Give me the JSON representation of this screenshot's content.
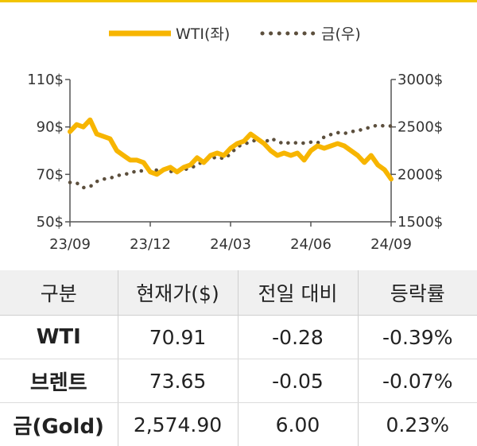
{
  "chart_data": {
    "type": "line",
    "x_ticks": [
      "23/09",
      "23/12",
      "24/03",
      "24/06",
      "24/09"
    ],
    "y_left_ticks": [
      "110$",
      "90$",
      "70$",
      "50$"
    ],
    "y_right_ticks": [
      "3000$",
      "2500$",
      "2000$",
      "1500$"
    ],
    "y_left_range": [
      50,
      110
    ],
    "y_right_range": [
      1500,
      3000
    ],
    "x_range": [
      0,
      12
    ],
    "legend_position": "top-center",
    "grid": false,
    "series": [
      {
        "name": "WTI(좌)",
        "axis": "left",
        "style": "solid",
        "color": "#f7b500",
        "x": [
          0,
          0.25,
          0.5,
          0.75,
          1,
          1.25,
          1.5,
          1.75,
          2,
          2.25,
          2.5,
          2.75,
          3,
          3.25,
          3.5,
          3.75,
          4,
          4.25,
          4.5,
          4.75,
          5,
          5.25,
          5.5,
          5.75,
          6,
          6.25,
          6.5,
          6.75,
          7,
          7.25,
          7.5,
          7.75,
          8,
          8.25,
          8.5,
          8.75,
          9,
          9.25,
          9.5,
          9.75,
          10,
          10.25,
          10.5,
          10.75,
          11,
          11.25,
          11.5,
          11.75,
          12
        ],
        "y": [
          88,
          91,
          90,
          93,
          87,
          86,
          85,
          80,
          78,
          76,
          76,
          75,
          71,
          70,
          72,
          73,
          71,
          73,
          74,
          77,
          75,
          78,
          79,
          78,
          81,
          83,
          84,
          87,
          85,
          83,
          80,
          78,
          79,
          78,
          79,
          76,
          80,
          82,
          81,
          82,
          83,
          82,
          80,
          78,
          75,
          78,
          74,
          72,
          68
        ]
      },
      {
        "name": "금(우)",
        "axis": "right",
        "style": "dotted",
        "color": "#5c4f3d",
        "x": [
          0,
          0.25,
          0.5,
          0.75,
          1,
          1.25,
          1.5,
          1.75,
          2,
          2.25,
          2.5,
          2.75,
          3,
          3.25,
          3.5,
          3.75,
          4,
          4.25,
          4.5,
          4.75,
          5,
          5.25,
          5.5,
          5.75,
          6,
          6.25,
          6.5,
          6.75,
          7,
          7.25,
          7.5,
          7.75,
          8,
          8.25,
          8.5,
          8.75,
          9,
          9.25,
          9.5,
          9.75,
          10,
          10.25,
          10.5,
          10.75,
          11,
          11.25,
          11.5,
          11.75,
          12
        ],
        "y": [
          1915,
          1910,
          1860,
          1870,
          1925,
          1950,
          1960,
          1985,
          2000,
          2010,
          2040,
          2035,
          2050,
          2045,
          2055,
          2030,
          2040,
          2050,
          2065,
          2100,
          2140,
          2165,
          2185,
          2165,
          2215,
          2290,
          2320,
          2340,
          2370,
          2330,
          2380,
          2350,
          2320,
          2340,
          2330,
          2330,
          2340,
          2330,
          2395,
          2420,
          2440,
          2430,
          2450,
          2460,
          2480,
          2500,
          2520,
          2510,
          2510
        ]
      }
    ]
  },
  "table": {
    "headers": [
      "구분",
      "현재가($)",
      "전일 대비",
      "등락률"
    ],
    "rows": [
      {
        "name": "WTI",
        "price": "70.91",
        "change": "-0.28",
        "rate": "-0.39%"
      },
      {
        "name": "브렌트",
        "price": "73.65",
        "change": "-0.05",
        "rate": "-0.07%"
      },
      {
        "name": "금(Gold)",
        "price": "2,574.90",
        "change": "6.00",
        "rate": "0.23%"
      }
    ]
  }
}
